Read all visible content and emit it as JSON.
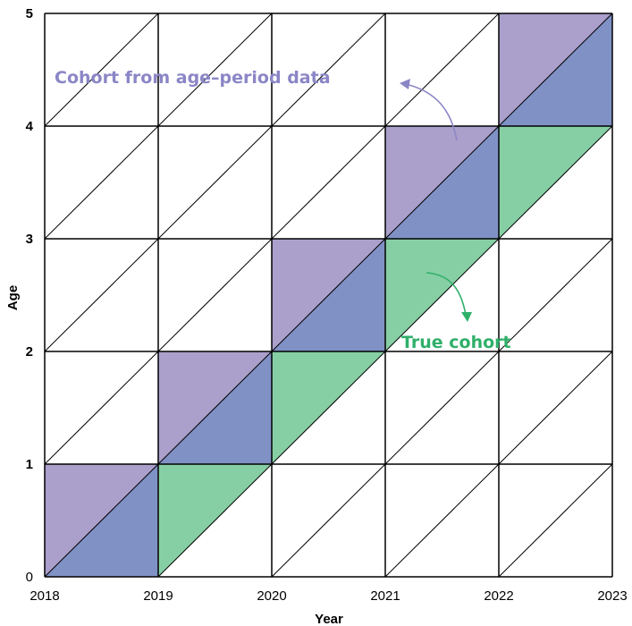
{
  "diagram": {
    "x_axis": {
      "label": "Year",
      "ticks": [
        "2018",
        "2019",
        "2020",
        "2021",
        "2022",
        "2023"
      ]
    },
    "y_axis": {
      "label": "Age",
      "ticks": [
        "0",
        "1",
        "2",
        "3",
        "4",
        "5"
      ]
    },
    "annotations": {
      "cohort_from_age_period": "Cohort from age–period data",
      "true_cohort": "True cohort"
    },
    "colors": {
      "upper_triangle": "#ab9fcb",
      "lower_triangle": "#7f91c5",
      "true_cohort": "#86cfa4",
      "annotation_purple": "#8b86c6",
      "annotation_green": "#2fb06a"
    },
    "cohort_from_age_period_cells": [
      {
        "year": "2018",
        "age": "0"
      },
      {
        "year": "2019",
        "age": "1"
      },
      {
        "year": "2020",
        "age": "2"
      },
      {
        "year": "2021",
        "age": "3"
      },
      {
        "year": "2022",
        "age": "4"
      }
    ],
    "true_cohort_cells": [
      {
        "year": "2019",
        "age": "0"
      },
      {
        "year": "2020",
        "age": "1"
      },
      {
        "year": "2021",
        "age": "2"
      },
      {
        "year": "2022",
        "age": "3"
      }
    ]
  }
}
